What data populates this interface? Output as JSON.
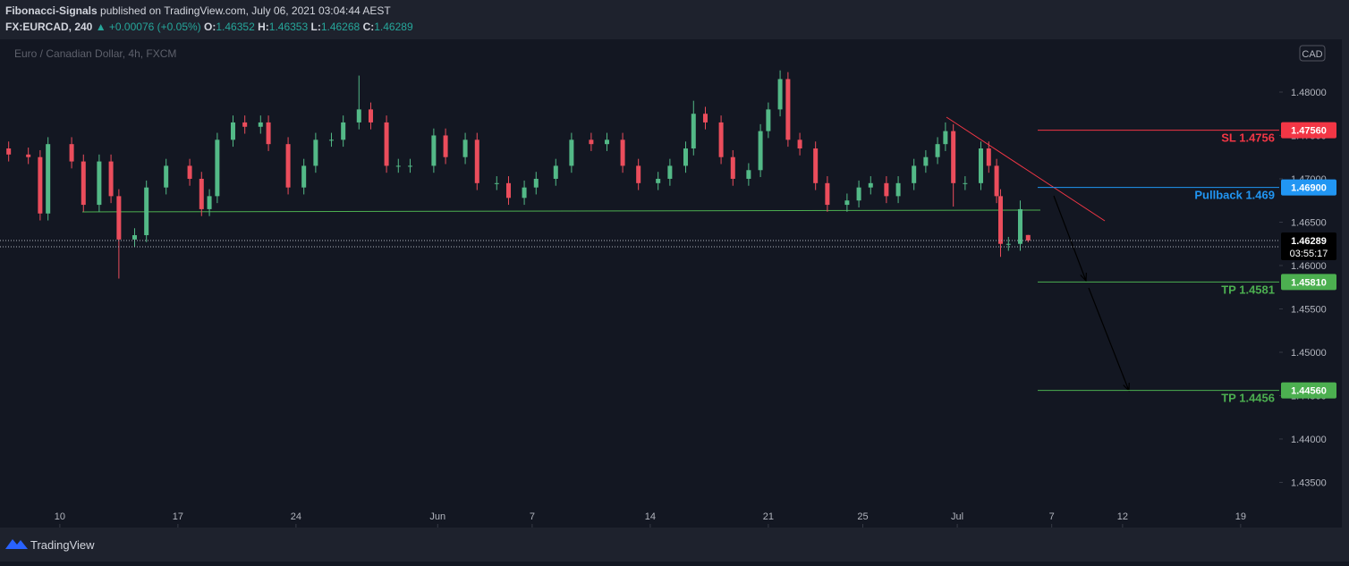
{
  "header": {
    "author": "Fibonacci-Signals",
    "published": " published on TradingView.com, July 06, 2021 03:04:44 AEST",
    "symbol": "FX:EURCAD, 240",
    "change": "▲ +0.00076 (+0.05%)",
    "o": "O:",
    "h": "H:",
    "l": "L:",
    "c": "C:"
  },
  "footer": {
    "brand": "TradingView"
  },
  "chart_data": {
    "type": "candlestick",
    "title": "Euro / Canadian Dollar, 4h, FXCM",
    "currency": "CAD",
    "up_color": "#53b987",
    "down_color": "#eb4d5c",
    "x": [
      -13,
      -8,
      -5,
      -3,
      3,
      6,
      10,
      13,
      15,
      19,
      22,
      27,
      33,
      36,
      38,
      40,
      44,
      47,
      51,
      53,
      58,
      62,
      65,
      69,
      72,
      76,
      79,
      83,
      86,
      89,
      95,
      98,
      103,
      106,
      111,
      114,
      118,
      121,
      126,
      130,
      135,
      139,
      143,
      147,
      152,
      155,
      159,
      161,
      164,
      168,
      171,
      175,
      178,
      180,
      183,
      185,
      188,
      192,
      195,
      200,
      203,
      206,
      210,
      213,
      217,
      220,
      223,
      225,
      227,
      230,
      234,
      236,
      238,
      239,
      241,
      244,
      246
    ],
    "open": [
      1.4735,
      1.4728,
      1.4725,
      1.466,
      1.474,
      1.472,
      1.467,
      1.472,
      1.468,
      1.463,
      1.4635,
      1.469,
      1.4715,
      1.47,
      1.4665,
      1.468,
      1.4745,
      1.4765,
      1.476,
      1.4765,
      1.474,
      1.469,
      1.4715,
      1.4745,
      1.4745,
      1.4765,
      1.478,
      1.4765,
      1.4715,
      1.4715,
      1.4715,
      1.475,
      1.4725,
      1.4745,
      1.4695,
      1.4695,
      1.4678,
      1.469,
      1.47,
      1.4715,
      1.4745,
      1.474,
      1.4745,
      1.4715,
      1.4695,
      1.47,
      1.4715,
      1.4735,
      1.4775,
      1.4765,
      1.4725,
      1.47,
      1.471,
      1.4755,
      1.478,
      1.4815,
      1.4745,
      1.4735,
      1.4695,
      1.467,
      1.4675,
      1.469,
      1.4695,
      1.468,
      1.4695,
      1.4715,
      1.4725,
      1.474,
      1.4755,
      1.4695,
      1.4695,
      1.4735,
      1.4715,
      1.468,
      1.4625,
      1.4625,
      1.46352
    ],
    "high": [
      1.4743,
      1.4736,
      1.4733,
      1.4748,
      1.4748,
      1.4728,
      1.4728,
      1.4728,
      1.4688,
      1.4643,
      1.4698,
      1.4723,
      1.4723,
      1.4708,
      1.4688,
      1.4753,
      1.4773,
      1.4773,
      1.4773,
      1.4773,
      1.4748,
      1.4723,
      1.4753,
      1.4753,
      1.4773,
      1.4819,
      1.4788,
      1.4773,
      1.4723,
      1.4723,
      1.4758,
      1.4758,
      1.4753,
      1.4753,
      1.4703,
      1.4703,
      1.4698,
      1.4708,
      1.4723,
      1.4753,
      1.4753,
      1.4753,
      1.4753,
      1.4723,
      1.4708,
      1.4723,
      1.4743,
      1.479,
      1.4783,
      1.4773,
      1.4733,
      1.4718,
      1.4763,
      1.4788,
      1.4825,
      1.4823,
      1.4753,
      1.4743,
      1.4703,
      1.4683,
      1.4698,
      1.4703,
      1.4703,
      1.4703,
      1.4723,
      1.4733,
      1.4748,
      1.4765,
      1.4763,
      1.4703,
      1.4743,
      1.4743,
      1.4723,
      1.4688,
      1.4633,
      1.4675,
      1.46353
    ],
    "low": [
      1.472,
      1.4717,
      1.4652,
      1.4652,
      1.4712,
      1.4662,
      1.4662,
      1.4672,
      1.4585,
      1.4622,
      1.4627,
      1.4682,
      1.4692,
      1.4657,
      1.4657,
      1.4672,
      1.4737,
      1.4752,
      1.4752,
      1.4732,
      1.4682,
      1.4682,
      1.4707,
      1.4737,
      1.4737,
      1.4757,
      1.4757,
      1.4707,
      1.4707,
      1.4707,
      1.4707,
      1.4717,
      1.4717,
      1.4687,
      1.4687,
      1.467,
      1.467,
      1.4682,
      1.4692,
      1.4707,
      1.4732,
      1.4732,
      1.4707,
      1.4687,
      1.4687,
      1.4692,
      1.4707,
      1.4727,
      1.4757,
      1.4717,
      1.4692,
      1.4692,
      1.4702,
      1.4747,
      1.4772,
      1.4737,
      1.4727,
      1.4687,
      1.4662,
      1.4662,
      1.4667,
      1.4682,
      1.4672,
      1.4672,
      1.4687,
      1.4707,
      1.4717,
      1.4732,
      1.4668,
      1.4687,
      1.4687,
      1.4707,
      1.4672,
      1.461,
      1.4617,
      1.4617,
      1.46268
    ],
    "close": [
      1.4728,
      1.4725,
      1.466,
      1.474,
      1.472,
      1.467,
      1.472,
      1.468,
      1.463,
      1.4635,
      1.469,
      1.4715,
      1.47,
      1.4665,
      1.468,
      1.4745,
      1.4765,
      1.476,
      1.4765,
      1.474,
      1.469,
      1.4715,
      1.4745,
      1.4745,
      1.4765,
      1.478,
      1.4765,
      1.4715,
      1.4715,
      1.4715,
      1.475,
      1.4725,
      1.4745,
      1.4695,
      1.4695,
      1.4678,
      1.469,
      1.47,
      1.4715,
      1.4745,
      1.474,
      1.4745,
      1.4715,
      1.4695,
      1.47,
      1.4715,
      1.4735,
      1.4775,
      1.4765,
      1.4725,
      1.47,
      1.471,
      1.4755,
      1.478,
      1.4815,
      1.4745,
      1.4735,
      1.4695,
      1.467,
      1.4675,
      1.469,
      1.4695,
      1.468,
      1.4695,
      1.4715,
      1.4725,
      1.474,
      1.4755,
      1.4695,
      1.4695,
      1.4735,
      1.4715,
      1.468,
      1.4625,
      1.4625,
      1.4665,
      1.46289
    ],
    "countdown": "03:55:17",
    "xlim": [
      -15.2,
      309.8
    ],
    "xticks": [
      {
        "value": 0,
        "label": "10"
      },
      {
        "value": 30,
        "label": "17"
      },
      {
        "value": 60,
        "label": "24"
      },
      {
        "value": 96,
        "label": "Jun"
      },
      {
        "value": 120,
        "label": "7"
      },
      {
        "value": 150,
        "label": "14"
      },
      {
        "value": 180,
        "label": "21"
      },
      {
        "value": 204,
        "label": "25"
      },
      {
        "value": 228,
        "label": "Jul"
      },
      {
        "value": 252,
        "label": "7"
      },
      {
        "value": 270,
        "label": "12"
      },
      {
        "value": 300,
        "label": "19"
      }
    ],
    "ylim": [
      1.42979,
      1.48608
    ],
    "yticks": [
      {
        "value": 1.435,
        "label": "1.43500"
      },
      {
        "value": 1.44,
        "label": "1.44000"
      },
      {
        "value": 1.445,
        "label": "1.44500"
      },
      {
        "value": 1.45,
        "label": "1.45000"
      },
      {
        "value": 1.455,
        "label": "1.45500"
      },
      {
        "value": 1.46,
        "label": "1.46000"
      },
      {
        "value": 1.465,
        "label": "1.46500"
      },
      {
        "value": 1.47,
        "label": "1.47000"
      },
      {
        "value": 1.475,
        "label": "1.47500"
      },
      {
        "value": 1.48,
        "label": "1.48000"
      }
    ],
    "levels": [
      {
        "label": "SL 1.4756",
        "price": {
          "value": 1.4756,
          "label": "1.47560"
        },
        "color": "#f23645"
      },
      {
        "label": "Pullback 1.469",
        "price": {
          "value": 1.469,
          "label": "1.46900"
        },
        "color": "#2196f3"
      },
      {
        "label": "TP 1.4581",
        "price": {
          "value": 1.4581,
          "label": "1.45810"
        },
        "color": "#4caf50"
      },
      {
        "label": "TP 1.4456",
        "price": {
          "value": 1.4456,
          "label": "1.44560"
        },
        "color": "#4caf50"
      }
    ]
  }
}
